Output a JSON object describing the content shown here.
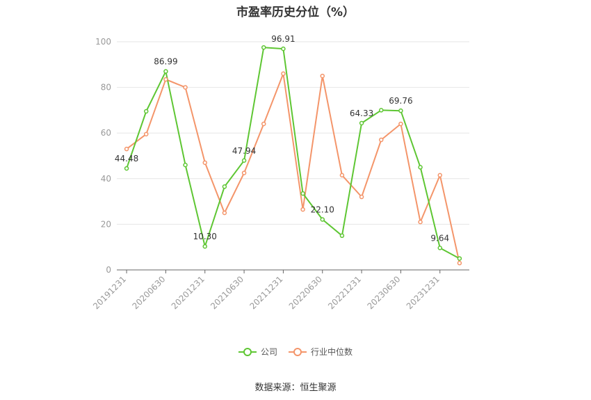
{
  "title": "市盈率历史分位（%）",
  "source_label": "数据来源：恒生聚源",
  "colors": {
    "company": "#5ec633",
    "industry": "#f4956a",
    "grid": "#e6e6e6",
    "axis": "#999999"
  },
  "legend": [
    {
      "label": "公司",
      "color": "#5ec633"
    },
    {
      "label": "行业中位数",
      "color": "#f4956a"
    }
  ],
  "chart_data": {
    "type": "line",
    "title": "市盈率历史分位（%）",
    "xlabel": "",
    "ylabel": "",
    "ylim": [
      0,
      100
    ],
    "yticks": [
      0,
      20,
      40,
      60,
      80,
      100
    ],
    "grid": true,
    "legend_position": "bottom",
    "x": [
      "20191231",
      "20200331",
      "20200630",
      "20200930",
      "20201231",
      "20210331",
      "20210630",
      "20210930",
      "20211231",
      "20220331",
      "20220630",
      "20220930",
      "20221231",
      "20230331",
      "20230630",
      "20230930",
      "20231231",
      "20240331"
    ],
    "x_tick_labels": [
      "20191231",
      "20200630",
      "20201231",
      "20210630",
      "20211231",
      "20220630",
      "20221231",
      "20230630",
      "20231231"
    ],
    "series": [
      {
        "name": "公司",
        "color": "#5ec633",
        "values": [
          44.48,
          69.5,
          86.99,
          46.0,
          10.3,
          36.5,
          47.94,
          97.5,
          96.91,
          33.5,
          22.1,
          15.0,
          64.33,
          70.0,
          69.76,
          45.0,
          9.64,
          5.0
        ],
        "labeled_indices": [
          0,
          2,
          4,
          6,
          8,
          10,
          12,
          14,
          16
        ]
      },
      {
        "name": "行业中位数",
        "color": "#f4956a",
        "values": [
          53.0,
          59.5,
          83.5,
          80.0,
          47.0,
          25.0,
          42.5,
          64.0,
          86.0,
          26.5,
          85.0,
          41.5,
          32.0,
          57.0,
          64.0,
          21.0,
          41.5,
          3.0
        ]
      }
    ]
  }
}
